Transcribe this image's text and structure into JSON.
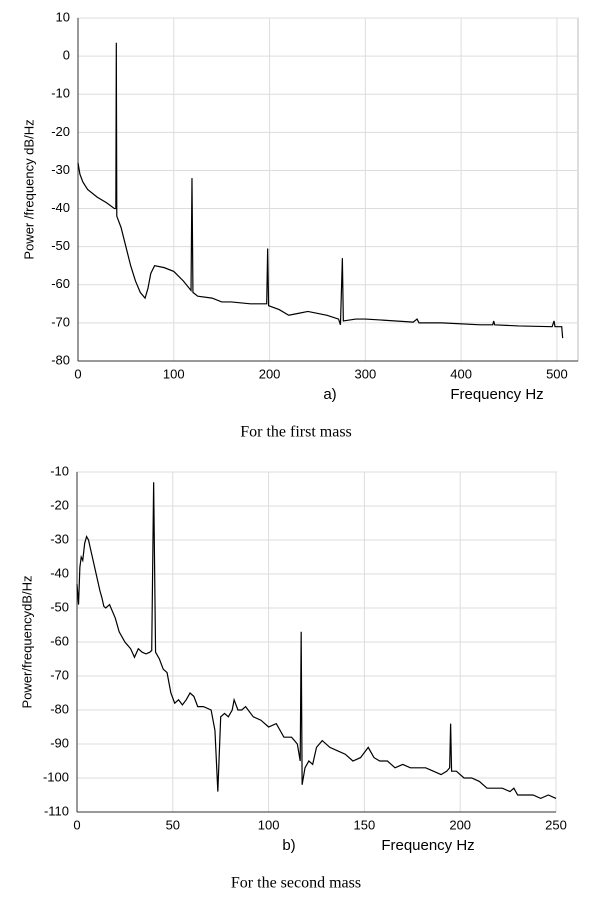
{
  "chart_data": [
    {
      "type": "line",
      "ylabel": "Power /frequency dB/Hz",
      "xlabel": "Frequency Hz",
      "annotation": "a)",
      "caption": "For the first mass",
      "xlim": [
        0,
        522
      ],
      "ylim": [
        -80,
        10
      ],
      "xticks": [
        0,
        100,
        200,
        300,
        400,
        500
      ],
      "yticks": [
        -80,
        -70,
        -60,
        -50,
        -40,
        -30,
        -20,
        -10,
        0,
        10
      ],
      "grid": true,
      "series": [
        {
          "color": "#000000",
          "x": [
            0,
            2,
            5,
            10,
            20,
            30,
            38,
            39.5,
            40,
            40.5,
            45,
            50,
            55,
            60,
            65,
            70,
            73,
            76,
            80,
            90,
            100,
            110,
            118,
            119,
            120,
            125,
            140,
            150,
            160,
            180,
            197,
            198,
            199,
            210,
            220,
            230,
            240,
            260,
            272,
            274,
            276,
            277,
            290,
            300,
            320,
            350,
            354,
            356,
            380,
            420,
            433,
            434,
            435,
            460,
            495,
            497,
            498,
            505,
            506
          ],
          "values": [
            -28,
            -31,
            -33,
            -35,
            -37,
            -38.5,
            -40,
            -40,
            3.5,
            -42,
            -45,
            -50,
            -55,
            -59,
            -62,
            -63.5,
            -61,
            -57,
            -55,
            -55.5,
            -56.5,
            -59,
            -61.5,
            -32,
            -62,
            -63,
            -63.5,
            -64.5,
            -64.5,
            -65,
            -65,
            -50.5,
            -65.5,
            -66.5,
            -68,
            -67.5,
            -67,
            -68,
            -69,
            -70.5,
            -53,
            -69.5,
            -69,
            -69,
            -69.3,
            -69.8,
            -69,
            -70,
            -70,
            -70.5,
            -70.5,
            -69.5,
            -70.5,
            -70.8,
            -71,
            -69.5,
            -71,
            -71,
            -74
          ]
        }
      ]
    },
    {
      "type": "line",
      "ylabel": "Power/frequencydB/Hz",
      "xlabel": "Frequency Hz",
      "annotation": "b)",
      "caption": "For the second mass",
      "xlim": [
        0,
        250
      ],
      "ylim": [
        -110,
        -10
      ],
      "xticks": [
        0,
        50,
        100,
        150,
        200,
        250
      ],
      "yticks": [
        -110,
        -100,
        -90,
        -80,
        -70,
        -60,
        -50,
        -40,
        -30,
        -20,
        -10
      ],
      "grid": true,
      "series": [
        {
          "color": "#000000",
          "x": [
            0,
            0.8,
            1.5,
            2.2,
            3,
            4,
            5,
            6,
            8,
            10,
            12,
            13,
            14,
            15,
            17,
            20,
            22,
            25,
            28,
            30,
            32,
            34,
            36,
            38,
            39,
            40,
            41,
            43,
            45,
            47,
            49,
            51,
            53,
            55,
            57,
            59,
            61,
            63,
            66,
            70,
            72,
            73.5,
            75,
            77,
            79,
            81,
            82,
            84,
            86,
            88,
            92,
            96,
            100,
            104,
            108,
            112,
            115,
            116.5,
            117,
            117.5,
            119,
            121,
            123,
            125,
            128,
            132,
            136,
            140,
            144,
            148,
            152,
            155,
            158,
            162,
            166,
            170,
            174,
            178,
            182,
            186,
            190,
            193,
            194.5,
            195,
            195.5,
            198,
            202,
            206,
            210,
            214,
            218,
            222,
            226,
            228,
            230,
            234,
            238,
            242,
            246,
            250
          ],
          "values": [
            -43,
            -49,
            -38,
            -35,
            -36,
            -31,
            -29,
            -30,
            -35,
            -40,
            -45,
            -47,
            -49.5,
            -50,
            -49,
            -53,
            -57,
            -60,
            -62,
            -64.5,
            -62,
            -63,
            -63.5,
            -63,
            -62.5,
            -13,
            -63,
            -65,
            -68,
            -69,
            -75,
            -78,
            -77,
            -78.5,
            -77,
            -75,
            -76,
            -79,
            -79,
            -80,
            -86,
            -104,
            -82,
            -81,
            -82,
            -80,
            -77,
            -80,
            -80,
            -79,
            -82,
            -83,
            -85,
            -84,
            -88,
            -88,
            -90,
            -95,
            -57,
            -102,
            -97,
            -95,
            -96,
            -91,
            -89,
            -91,
            -92,
            -93,
            -95,
            -94,
            -91,
            -94,
            -95,
            -95,
            -97,
            -96,
            -97,
            -97,
            -97,
            -98,
            -99,
            -98,
            -97,
            -84,
            -98,
            -98,
            -100,
            -100,
            -101,
            -103,
            -103,
            -103,
            -104,
            -103,
            -105,
            -105,
            -105,
            -106,
            -105,
            -106
          ]
        }
      ]
    }
  ]
}
